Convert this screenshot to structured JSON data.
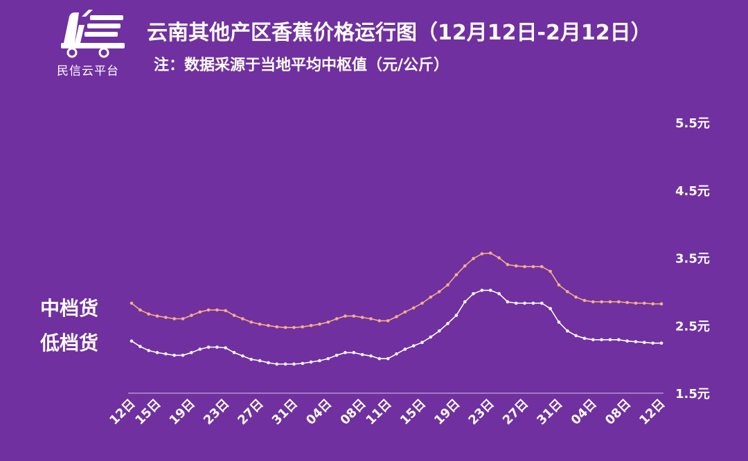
{
  "logo": {
    "text": "民信云平台",
    "icon": "delivery-cart-logo-icon"
  },
  "colors": {
    "background": "#7030A0",
    "series_mid": "#F4B183",
    "series_low": "#FFFFFF",
    "axis": "#D9C3EC"
  },
  "chart_data": {
    "type": "line",
    "title": "云南其他产区香蕉价格运行图（12月12日-2月12日）",
    "subtitle": "注：数据采源于当地平均中枢值（元/公斤）",
    "ylim": [
      1.5,
      5.5
    ],
    "yticks": [
      "5.5元",
      "4.5元",
      "3.5元",
      "2.5元",
      "1.5元"
    ],
    "ytick_values": [
      5.5,
      4.5,
      3.5,
      2.5,
      1.5
    ],
    "y_axis_position": "right",
    "grid": false,
    "legend_placement": "left",
    "xticks": [
      "12日",
      "15日",
      "19日",
      "23日",
      "27日",
      "31日",
      "04日",
      "08日",
      "11日",
      "15日",
      "19日",
      "23日",
      "27日",
      "31日",
      "04日",
      "08日",
      "12日"
    ],
    "xtick_indices": [
      0,
      3,
      7,
      11,
      15,
      19,
      23,
      27,
      30,
      34,
      38,
      42,
      46,
      50,
      54,
      58,
      62
    ],
    "series": [
      {
        "name": "中档货",
        "values": [
          2.83,
          2.73,
          2.67,
          2.64,
          2.62,
          2.6,
          2.6,
          2.65,
          2.7,
          2.73,
          2.73,
          2.72,
          2.65,
          2.6,
          2.55,
          2.52,
          2.5,
          2.48,
          2.47,
          2.47,
          2.48,
          2.5,
          2.52,
          2.55,
          2.6,
          2.64,
          2.64,
          2.62,
          2.6,
          2.57,
          2.57,
          2.63,
          2.7,
          2.76,
          2.83,
          2.92,
          3.0,
          3.1,
          3.25,
          3.38,
          3.49,
          3.56,
          3.57,
          3.5,
          3.4,
          3.38,
          3.37,
          3.37,
          3.37,
          3.3,
          3.1,
          3.0,
          2.92,
          2.87,
          2.85,
          2.85,
          2.85,
          2.85,
          2.84,
          2.83,
          2.83,
          2.82,
          2.82
        ]
      },
      {
        "name": "低档货",
        "values": [
          2.27,
          2.19,
          2.13,
          2.1,
          2.08,
          2.06,
          2.06,
          2.1,
          2.15,
          2.18,
          2.18,
          2.17,
          2.1,
          2.05,
          2.0,
          1.98,
          1.95,
          1.93,
          1.93,
          1.93,
          1.94,
          1.96,
          1.98,
          2.01,
          2.06,
          2.1,
          2.1,
          2.07,
          2.05,
          2.01,
          2.01,
          2.08,
          2.15,
          2.2,
          2.25,
          2.33,
          2.42,
          2.53,
          2.65,
          2.85,
          2.97,
          3.02,
          3.02,
          2.97,
          2.85,
          2.83,
          2.83,
          2.83,
          2.83,
          2.75,
          2.55,
          2.42,
          2.35,
          2.31,
          2.29,
          2.29,
          2.29,
          2.29,
          2.27,
          2.26,
          2.25,
          2.24,
          2.24
        ]
      }
    ]
  }
}
